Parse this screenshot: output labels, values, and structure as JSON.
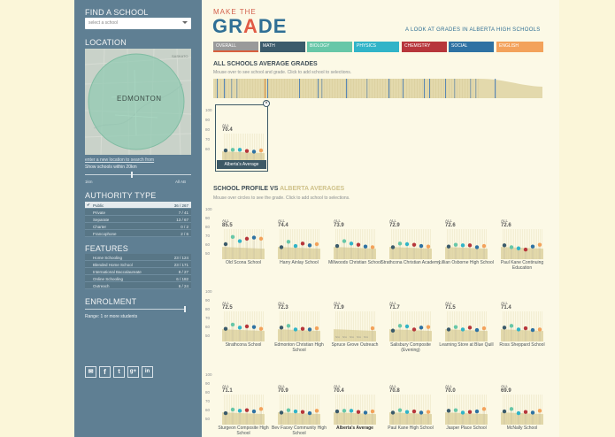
{
  "sidebar": {
    "find_school": {
      "heading": "FIND A SCHOOL",
      "placeholder": "select a school"
    },
    "location": {
      "heading": "LOCATION",
      "city_label": "EDMONTON",
      "region_label": "SASKATO",
      "enter_location_link": "enter a new location to search from",
      "within_text": "Show schools within 20km",
      "slider_min": "1km",
      "slider_max": "All AB"
    },
    "authority": {
      "heading": "AUTHORITY TYPE",
      "items": [
        {
          "label": "Public",
          "count": "36 / 267",
          "selected": true
        },
        {
          "label": "Private",
          "count": "7 / 41",
          "selected": false
        },
        {
          "label": "Separate",
          "count": "13 / 67",
          "selected": false
        },
        {
          "label": "Charter",
          "count": "0 / 2",
          "selected": false
        },
        {
          "label": "Francophone",
          "count": "2 / 6",
          "selected": false
        }
      ]
    },
    "features": {
      "heading": "FEATURES",
      "items": [
        {
          "label": "Home Schooling",
          "count": "23 / 124"
        },
        {
          "label": "Blended Home School",
          "count": "23 / 171"
        },
        {
          "label": "International Baccalaureate",
          "count": "8 / 27"
        },
        {
          "label": "Online Schooling",
          "count": "6 / 182"
        },
        {
          "label": "Outreach",
          "count": "6 / 24"
        }
      ]
    },
    "enrolment": {
      "heading": "ENROLMENT",
      "range_text": "Range: 1 or more students"
    },
    "social": [
      "email-icon",
      "facebook-icon",
      "twitter-icon",
      "google-plus-icon",
      "linkedin-icon"
    ]
  },
  "header": {
    "make_the": "MAKE THE",
    "grade_first": "GR",
    "grade_a": "A",
    "grade_rest": "DE",
    "tagline": "A LOOK AT GRADES IN ALBERTA HIGH SCHOOLS"
  },
  "tabs": [
    {
      "label": "OVERALL",
      "color": "#9a9a9a",
      "underline": "#d8603f"
    },
    {
      "label": "MATH",
      "color": "#3b5b6b"
    },
    {
      "label": "BIOLOGY",
      "color": "#67c7a8"
    },
    {
      "label": "PHYSICS",
      "color": "#31b4c8"
    },
    {
      "label": "CHEMISTRY",
      "color": "#b7363b"
    },
    {
      "label": "SOCIAL",
      "color": "#2e72a3"
    },
    {
      "label": "ENGLISH",
      "color": "#f3a25b"
    }
  ],
  "all_schools": {
    "title": "ALL SCHOOLS AVERAGE GRADES",
    "subtitle": "Mouse over to see school and grade. Click to add school to selections."
  },
  "popup": {
    "all": "ALL",
    "value": "70.4",
    "label": "Alberta's Average"
  },
  "profile": {
    "title_a": "SCHOOL PROFILE vs ",
    "title_b": "ALBERTA AVERAGES",
    "subtitle": "Mouse over circles to see the grade. Click to add school to selections."
  },
  "axis_ticks": [
    "100",
    "90",
    "80",
    "70",
    "60",
    "50"
  ],
  "colors": {
    "math": "#3b5b6b",
    "biology": "#67c7a8",
    "physics": "#31b4c8",
    "chemistry": "#b7363b",
    "social": "#2e72a3",
    "english": "#f3a25b"
  },
  "schools": [
    {
      "name": "Old Scona School",
      "all": "ALL",
      "avg": "85.5",
      "grades": [
        75,
        87,
        80,
        84,
        86,
        84
      ],
      "bold": false
    },
    {
      "name": "Harry Ainlay School",
      "all": "ALL",
      "avg": "74.4",
      "grades": [
        70,
        79,
        72,
        76,
        73,
        75
      ],
      "bold": false
    },
    {
      "name": "Millwoods Christian School",
      "all": "ALL",
      "avg": "73.9",
      "grades": [
        72,
        80,
        76,
        74,
        71,
        70
      ],
      "bold": false
    },
    {
      "name": "Strathcona Christian Academy",
      "all": "ALL",
      "avg": "72.9",
      "grades": [
        70,
        76,
        75,
        74,
        72,
        71
      ],
      "bold": false
    },
    {
      "name": "Lillian Osborne High School",
      "all": "ALL",
      "avg": "72.6",
      "grades": [
        71,
        74,
        73,
        73,
        70,
        72
      ],
      "bold": false
    },
    {
      "name": "Paul Kane Continuing Education",
      "all": "ALL",
      "avg": "72.6",
      "grades": [
        73,
        70,
        68,
        66,
        71,
        74
      ],
      "bold": false
    },
    {
      "name": "Strathcona School",
      "all": "ALL",
      "avg": "72.5",
      "grades": [
        71,
        78,
        73,
        75,
        74,
        71
      ],
      "bold": false
    },
    {
      "name": "Edmonton Christian High School",
      "all": "ALL",
      "avg": "72.3",
      "grades": [
        73,
        76,
        70,
        71,
        70,
        72
      ],
      "bold": false
    },
    {
      "name": "Spruce Grove Outreach",
      "all": "ALL",
      "avg": "71.9",
      "grades": [
        null,
        null,
        null,
        null,
        null,
        72
      ],
      "bold": false
    },
    {
      "name": "Salisbury Composite (Evening)",
      "all": "ALL",
      "avg": "71.7",
      "grades": [
        68,
        76,
        75,
        70,
        73,
        74
      ],
      "bold": false
    },
    {
      "name": "Learning Store at Blue Quill",
      "all": "ALL",
      "avg": "71.5",
      "grades": [
        70,
        74,
        70,
        73,
        69,
        72
      ],
      "bold": false
    },
    {
      "name": "Ross Sheppard School",
      "all": "ALL",
      "avg": "71.4",
      "grades": [
        73,
        76,
        70,
        72,
        69,
        70
      ],
      "bold": false
    },
    {
      "name": "Sturgeon Composite High School",
      "all": "ALL",
      "avg": "71.1",
      "grades": [
        69,
        75,
        73,
        74,
        72,
        76
      ],
      "bold": false
    },
    {
      "name": "Bev Facey Community High School",
      "all": "ALL",
      "avg": "70.9",
      "grades": [
        70,
        74,
        72,
        71,
        69,
        73
      ],
      "bold": false
    },
    {
      "name": "Alberta's Average",
      "all": "ALL",
      "avg": "70.4",
      "grades": [
        72,
        73,
        73,
        71,
        70,
        72
      ],
      "bold": true
    },
    {
      "name": "Paul Kane High School",
      "all": "ALL",
      "avg": "70.8",
      "grades": [
        70,
        74,
        71,
        72,
        70,
        71
      ],
      "bold": false
    },
    {
      "name": "Jasper Place School",
      "all": "ALL",
      "avg": "70.0",
      "grades": [
        73,
        74,
        70,
        71,
        72,
        76
      ],
      "bold": false
    },
    {
      "name": "McNally School",
      "all": "ALL",
      "avg": "69.9",
      "grades": [
        72,
        76,
        69,
        71,
        70,
        73
      ],
      "bold": false
    }
  ]
}
